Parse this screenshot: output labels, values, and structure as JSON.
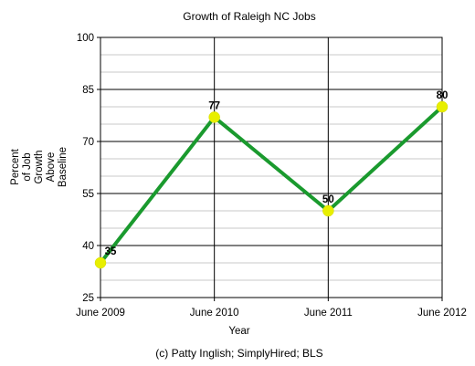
{
  "chart_data": {
    "type": "line",
    "title": "Growth of Raleigh NC Jobs",
    "xlabel": "Year",
    "ylabel_lines": [
      "Percent",
      "of Job",
      "Growth",
      "Above",
      "Baseline"
    ],
    "categories": [
      "June 2009",
      "June 2010",
      "June 2011",
      "June 2012"
    ],
    "series": [
      {
        "values": [
          35,
          77,
          50,
          80
        ],
        "data_labels": [
          "35",
          "77",
          "50",
          "80"
        ],
        "line_color": "#1a9a2e",
        "marker_color": "#e8ef00"
      }
    ],
    "ylim": [
      25,
      100
    ],
    "yticks": [
      "25",
      "40",
      "55",
      "70",
      "85",
      "100"
    ],
    "grid": true,
    "legend": "none"
  },
  "footer": "(c) Patty Inglish; SimplyHired; BLS"
}
